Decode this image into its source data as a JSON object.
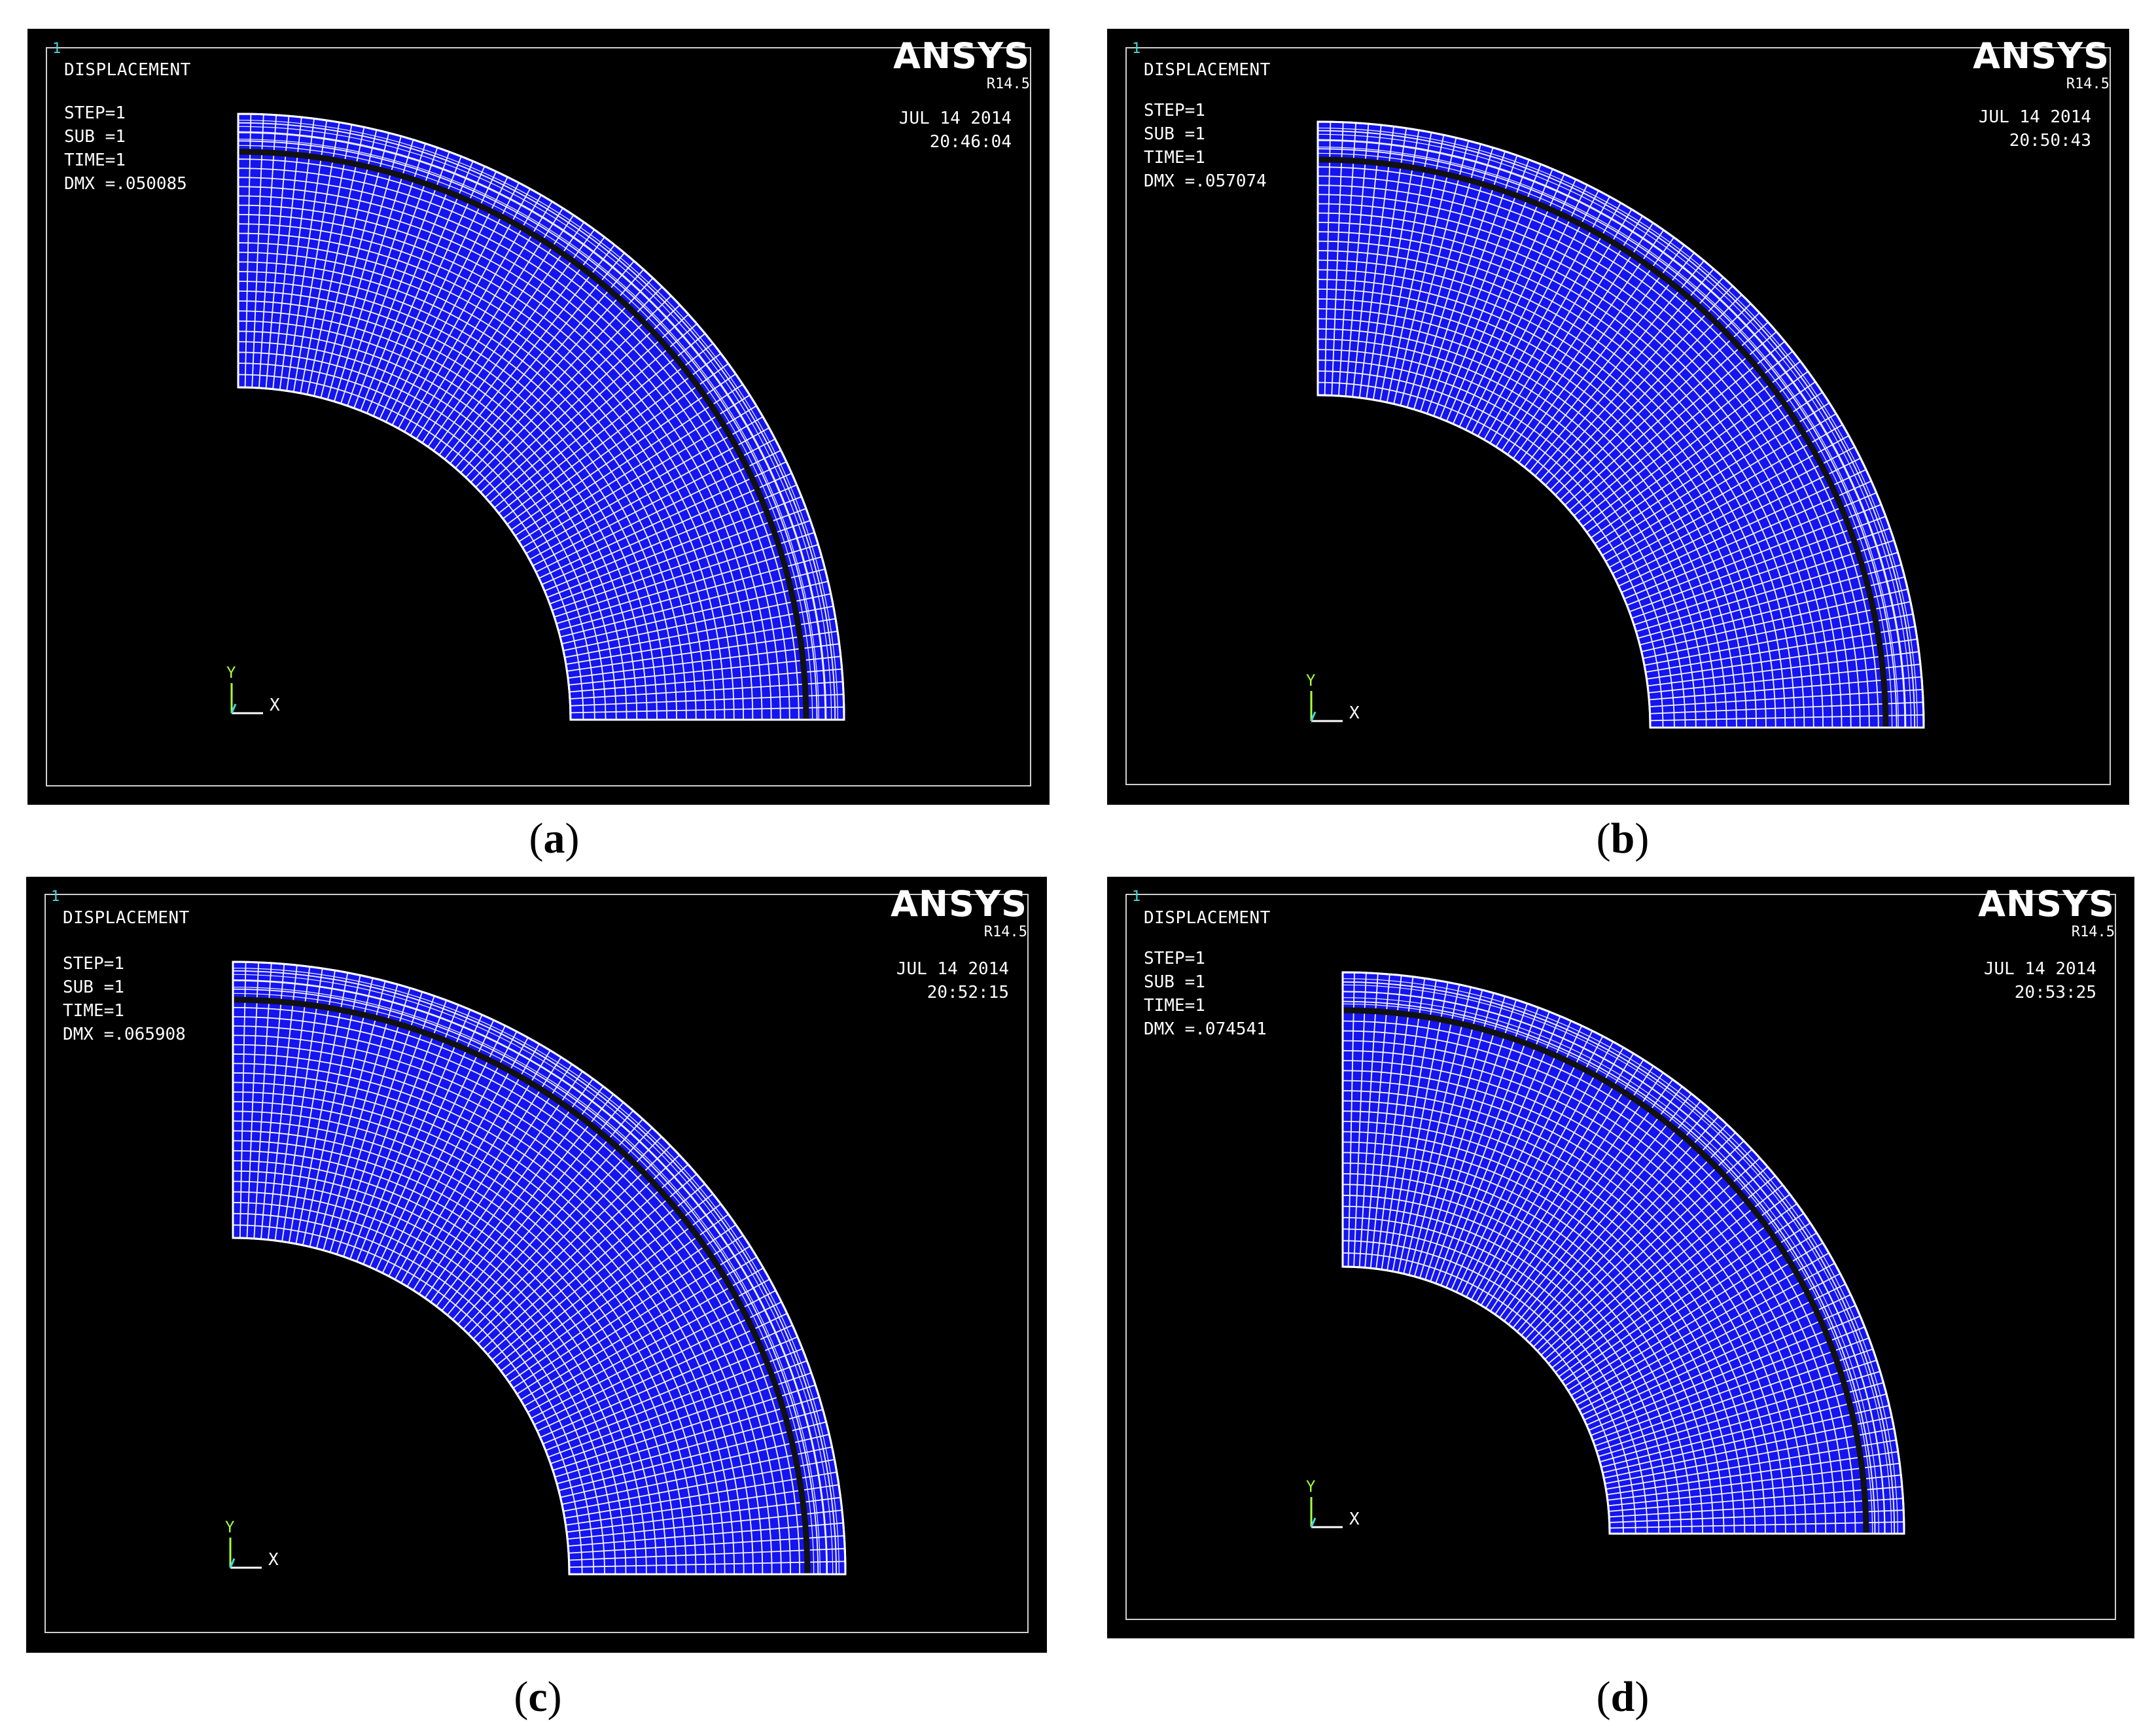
{
  "colors": {
    "mesh_fill": "#1515f0",
    "mesh_line": "#ffffff",
    "interface_ring": "#111111",
    "background": "#000000",
    "window_number": "#3fd8e0"
  },
  "icons": [
    "coordinate-triad-icon"
  ],
  "panels": [
    {
      "caption_letter": "a",
      "window_number": "1",
      "title": "DISPLACEMENT",
      "step": "STEP=1",
      "sub": "SUB =1",
      "time": "TIME=1",
      "dmx": "DMX =.050085",
      "brand": "ANSYS",
      "revision": "R14.5",
      "date": "JUL 14 2014",
      "clock": "20:46:04",
      "axis_y": "Y",
      "axis_x": "X"
    },
    {
      "caption_letter": "b",
      "window_number": "1",
      "title": "DISPLACEMENT",
      "step": "STEP=1",
      "sub": "SUB =1",
      "time": "TIME=1",
      "dmx": "DMX =.057074",
      "brand": "ANSYS",
      "revision": "R14.5",
      "date": "JUL 14 2014",
      "clock": "20:50:43",
      "axis_y": "Y",
      "axis_x": "X"
    },
    {
      "caption_letter": "c",
      "window_number": "1",
      "title": "DISPLACEMENT",
      "step": "STEP=1",
      "sub": "SUB =1",
      "time": "TIME=1",
      "dmx": "DMX =.065908",
      "brand": "ANSYS",
      "revision": "R14.5",
      "date": "JUL 14 2014",
      "clock": "20:52:15",
      "axis_y": "Y",
      "axis_x": "X"
    },
    {
      "caption_letter": "d",
      "window_number": "1",
      "title": "DISPLACEMENT",
      "step": "STEP=1",
      "sub": "SUB =1",
      "time": "TIME=1",
      "dmx": "DMX =.074541",
      "brand": "ANSYS",
      "revision": "R14.5",
      "date": "JUL 14 2014",
      "clock": "20:53:25",
      "axis_y": "Y",
      "axis_x": "X"
    }
  ]
}
